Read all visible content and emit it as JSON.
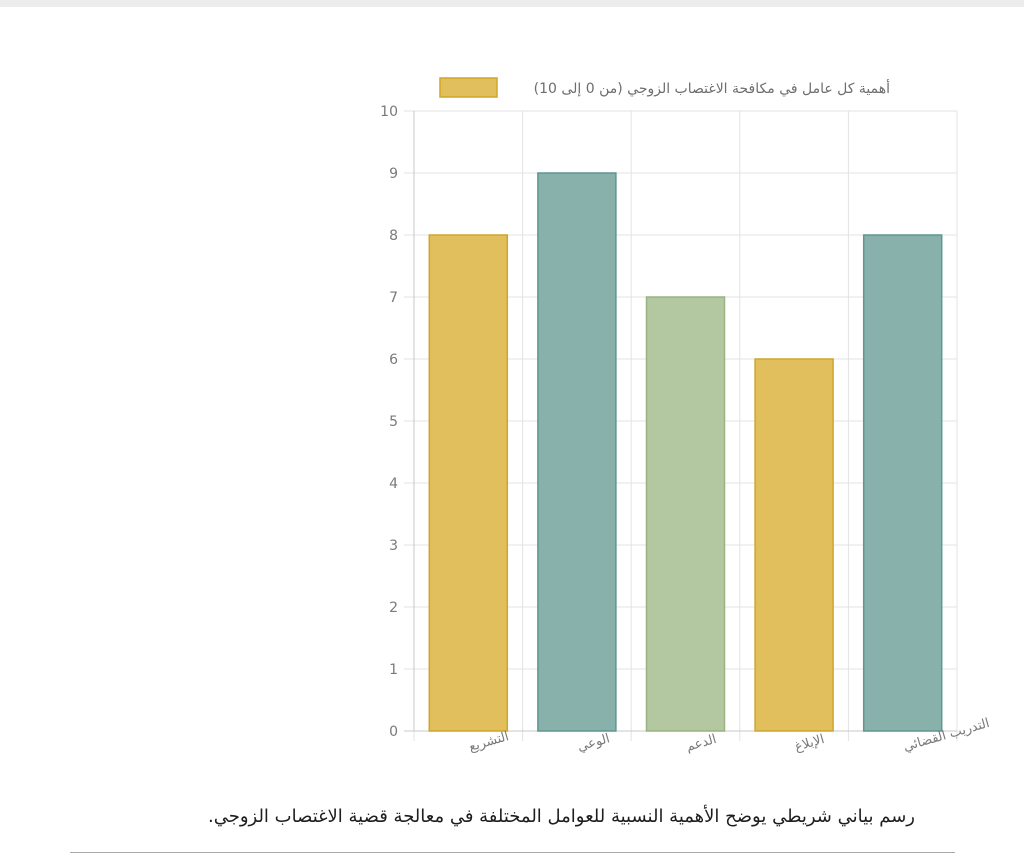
{
  "chart_data": {
    "type": "bar",
    "categories": [
      "التشريع",
      "الوعي",
      "الدعم",
      "الإبلاغ",
      "التدريب القضائي"
    ],
    "series": [
      {
        "name": "أهمية كل عامل في مكافحة الاغتصاب الزوجي (من 0 إلى 10)",
        "values": [
          8,
          9,
          7,
          6,
          8
        ]
      }
    ],
    "bar_colors": [
      "#e0bf5c",
      "#89b1ac",
      "#b3c8a0",
      "#e0bf5c",
      "#89b1ac"
    ],
    "bar_borders": [
      "#cfa52a",
      "#5f9690",
      "#98b283",
      "#cfa52a",
      "#5f9690"
    ],
    "legend_color": "#e0bf5c",
    "legend_border": "#cfa52a",
    "yticks": [
      "0",
      "1",
      "2",
      "3",
      "4",
      "5",
      "6",
      "7",
      "8",
      "9",
      "10"
    ],
    "ylim": [
      0,
      10
    ],
    "grid": true,
    "legend_position": "top"
  },
  "caption": "رسم بياني شريطي يوضح الأهمية النسبية للعوامل المختلفة في معالجة قضية الاغتصاب الزوجي."
}
